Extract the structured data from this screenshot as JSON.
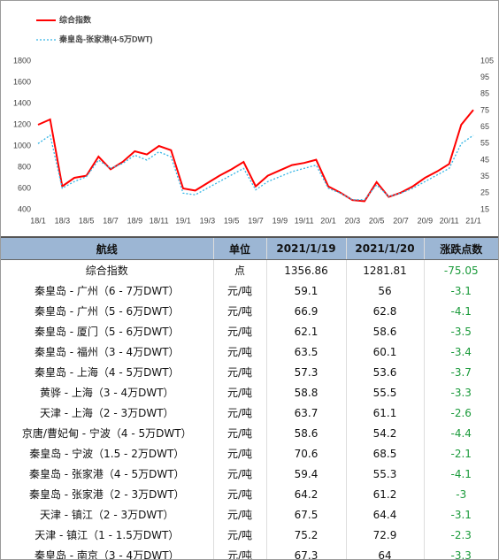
{
  "chart_data": {
    "type": "line",
    "categories": [
      "18/1",
      null,
      "18/3",
      null,
      "18/5",
      null,
      "18/7",
      null,
      "18/9",
      null,
      "18/11",
      null,
      "19/1",
      null,
      "19/3",
      null,
      "19/5",
      null,
      "19/7",
      null,
      "19/9",
      null,
      "19/11",
      null,
      "20/1",
      null,
      "20/3",
      null,
      "20/5",
      null,
      "20/7",
      null,
      "20/9",
      null,
      "20/11",
      null,
      "21/1"
    ],
    "series": [
      {
        "name": "综合指数",
        "color": "#ff0000",
        "axis": "y",
        "values": [
          1200,
          1250,
          620,
          700,
          720,
          900,
          780,
          850,
          950,
          920,
          1000,
          960,
          600,
          580,
          650,
          720,
          780,
          850,
          620,
          720,
          770,
          820,
          840,
          870,
          620,
          560,
          490,
          480,
          660,
          520,
          560,
          620,
          700,
          760,
          830,
          1200,
          1340
        ]
      },
      {
        "name": "秦皇岛-张家港(4-5万DWT)",
        "color": "#33b5e5",
        "axis": "y2",
        "values": [
          55,
          60,
          28,
          32,
          35,
          45,
          40,
          43,
          48,
          45,
          50,
          47,
          25,
          24,
          28,
          32,
          36,
          40,
          27,
          32,
          35,
          38,
          40,
          42,
          28,
          25,
          21,
          21,
          30,
          23,
          25,
          28,
          32,
          36,
          40,
          55,
          60
        ]
      }
    ],
    "ylim": [
      400,
      1800
    ],
    "yticks": [
      400,
      600,
      800,
      1000,
      1200,
      1400,
      1600,
      1800
    ],
    "y2lim": [
      15,
      105
    ],
    "y2ticks": [
      15,
      25,
      35,
      45,
      55,
      65,
      75,
      85,
      95,
      105
    ],
    "grid": false
  },
  "table": {
    "header": [
      "航线",
      "单位",
      "2021/1/19",
      "2021/1/20",
      "涨跌点数"
    ],
    "rows": [
      [
        "综合指数",
        "点",
        "1356.86",
        "1281.81",
        "-75.05"
      ],
      [
        "秦皇岛 - 广州（6 - 7万DWT）",
        "元/吨",
        "59.1",
        "56",
        "-3.1"
      ],
      [
        "秦皇岛 - 广州（5 - 6万DWT）",
        "元/吨",
        "66.9",
        "62.8",
        "-4.1"
      ],
      [
        "秦皇岛 - 厦门（5 - 6万DWT）",
        "元/吨",
        "62.1",
        "58.6",
        "-3.5"
      ],
      [
        "秦皇岛 - 福州（3 - 4万DWT）",
        "元/吨",
        "63.5",
        "60.1",
        "-3.4"
      ],
      [
        "秦皇岛 - 上海（4 - 5万DWT）",
        "元/吨",
        "57.3",
        "53.6",
        "-3.7"
      ],
      [
        "黄骅 - 上海（3 - 4万DWT）",
        "元/吨",
        "58.8",
        "55.5",
        "-3.3"
      ],
      [
        "天津 - 上海（2 - 3万DWT）",
        "元/吨",
        "63.7",
        "61.1",
        "-2.6"
      ],
      [
        "京唐/曹妃甸 - 宁波（4 - 5万DWT）",
        "元/吨",
        "58.6",
        "54.2",
        "-4.4"
      ],
      [
        "秦皇岛 - 宁波（1.5 - 2万DWT）",
        "元/吨",
        "70.6",
        "68.5",
        "-2.1"
      ],
      [
        "秦皇岛 - 张家港（4 - 5万DWT）",
        "元/吨",
        "59.4",
        "55.3",
        "-4.1"
      ],
      [
        "秦皇岛 - 张家港（2 - 3万DWT）",
        "元/吨",
        "64.2",
        "61.2",
        "-3"
      ],
      [
        "天津 - 镇江（2 - 3万DWT）",
        "元/吨",
        "67.5",
        "64.4",
        "-3.1"
      ],
      [
        "天津 - 镇江（1 - 1.5万DWT）",
        "元/吨",
        "75.2",
        "72.9",
        "-2.3"
      ],
      [
        "秦皇岛 - 南京（3 - 4万DWT）",
        "元/吨",
        "67.3",
        "64",
        "-3.3"
      ]
    ]
  }
}
